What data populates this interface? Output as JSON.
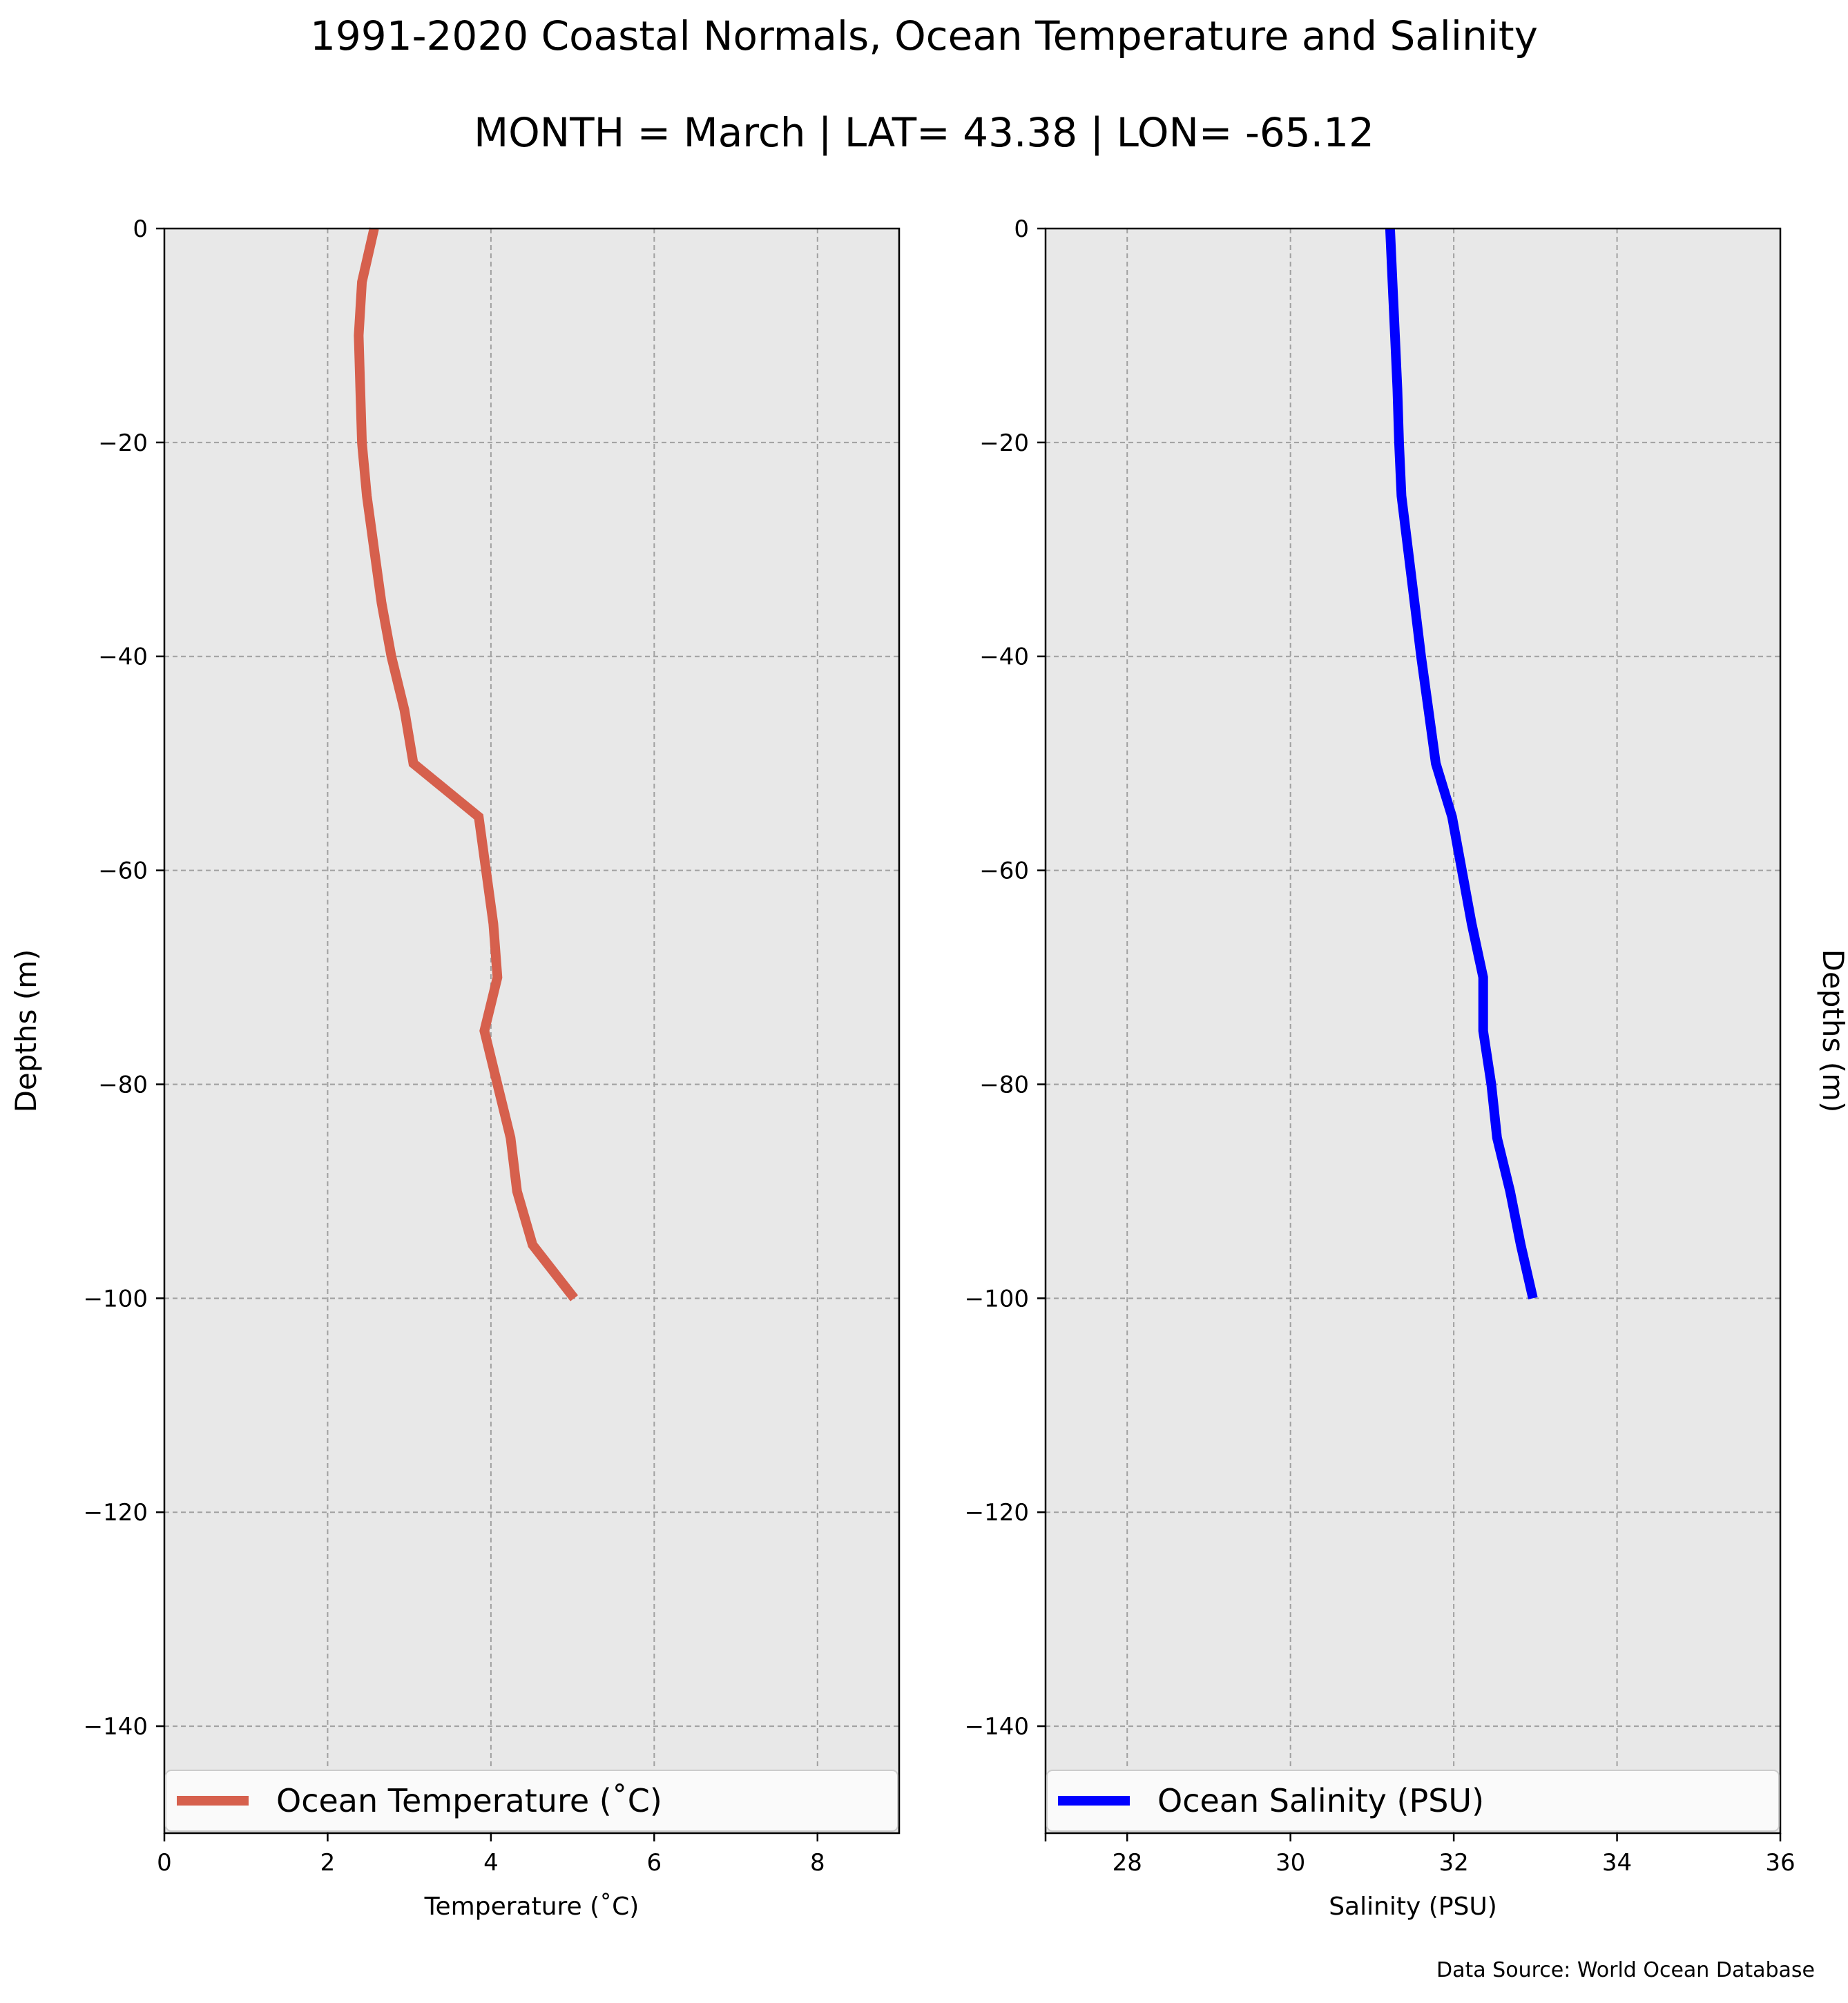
{
  "title": "1991-2020 Coastal Normals, Ocean Temperature and Salinity",
  "subtitle": "MONTH = March | LAT= 43.38 | LON= -65.12",
  "source": "Data Source: World Ocean Database",
  "chart_data": [
    {
      "type": "line",
      "xlabel": "Temperature ($^\\circ$C)",
      "xlabel_display": "Temperature (˚C)",
      "ylabel": "Depths (m)",
      "xlim": [
        0,
        9
      ],
      "ylim": [
        -150,
        0
      ],
      "xticks": [
        0,
        2,
        4,
        6,
        8
      ],
      "xtick_labels": [
        "0",
        "2",
        "4",
        "6",
        "8"
      ],
      "yticks": [
        0,
        -20,
        -40,
        -60,
        -80,
        -100,
        -120,
        -140
      ],
      "ytick_labels": [
        "0",
        "−20",
        "−40",
        "−60",
        "−80",
        "−100",
        "−120",
        "−140"
      ],
      "grid": true,
      "legend_position": "bottom",
      "series": [
        {
          "name": "Ocean Temperature (˚C)",
          "color": "#d6604d",
          "x": [
            2.57,
            2.42,
            2.38,
            2.4,
            2.42,
            2.48,
            2.57,
            2.66,
            2.78,
            2.94,
            3.05,
            3.85,
            3.94,
            4.03,
            4.08,
            3.92,
            4.08,
            4.24,
            4.32,
            4.51,
            5.02
          ],
          "y": [
            0,
            -5,
            -10,
            -15,
            -20,
            -25,
            -30,
            -35,
            -40,
            -45,
            -50,
            -55,
            -60,
            -65,
            -70,
            -75,
            -80,
            -85,
            -90,
            -95,
            -100
          ]
        }
      ]
    },
    {
      "type": "line",
      "xlabel": "Salinity (PSU)",
      "ylabel": "Depths (m)",
      "xlim": [
        27,
        36
      ],
      "ylim": [
        -150,
        0
      ],
      "xticks": [
        28,
        30,
        32,
        34,
        36
      ],
      "xtick_labels": [
        "28",
        "30",
        "32",
        "34",
        "36"
      ],
      "yticks": [
        0,
        -20,
        -40,
        -60,
        -80,
        -100,
        -120,
        -140
      ],
      "ytick_labels": [
        "0",
        "−20",
        "−40",
        "−60",
        "−80",
        "−100",
        "−120",
        "−140"
      ],
      "grid": true,
      "legend_position": "bottom",
      "series": [
        {
          "name": "Ocean Salinity (PSU)",
          "color": "#0000ff",
          "x": [
            31.22,
            31.25,
            31.28,
            31.31,
            31.33,
            31.36,
            31.44,
            31.52,
            31.6,
            31.69,
            31.78,
            31.98,
            32.1,
            32.22,
            32.36,
            32.36,
            32.46,
            32.53,
            32.69,
            32.82,
            32.97
          ],
          "y": [
            0,
            -5,
            -10,
            -15,
            -20,
            -25,
            -30,
            -35,
            -40,
            -45,
            -50,
            -55,
            -60,
            -65,
            -70,
            -75,
            -80,
            -85,
            -90,
            -95,
            -100
          ]
        }
      ]
    }
  ]
}
